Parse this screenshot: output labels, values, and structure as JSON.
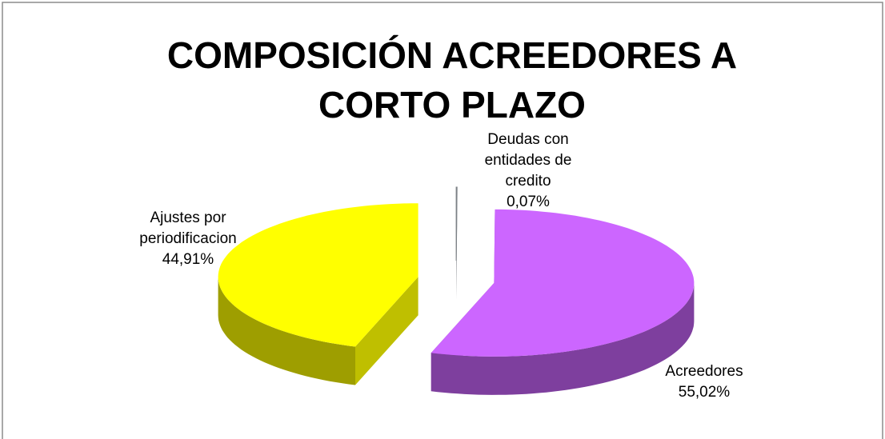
{
  "chart_data": {
    "type": "pie",
    "title": "COMPOSICIÓN ACREEDORES A CORTO PLAZO",
    "categories": [
      "Deudas con entidades de credito",
      "Acreedores",
      "Ajustes por periodificacion"
    ],
    "values": [
      0.07,
      55.02,
      44.91
    ],
    "value_labels": [
      "0,07%",
      "55,02%",
      "44,91%"
    ],
    "colors": [
      "#9aa0a6",
      "#cc66ff",
      "#ffff00"
    ]
  }
}
